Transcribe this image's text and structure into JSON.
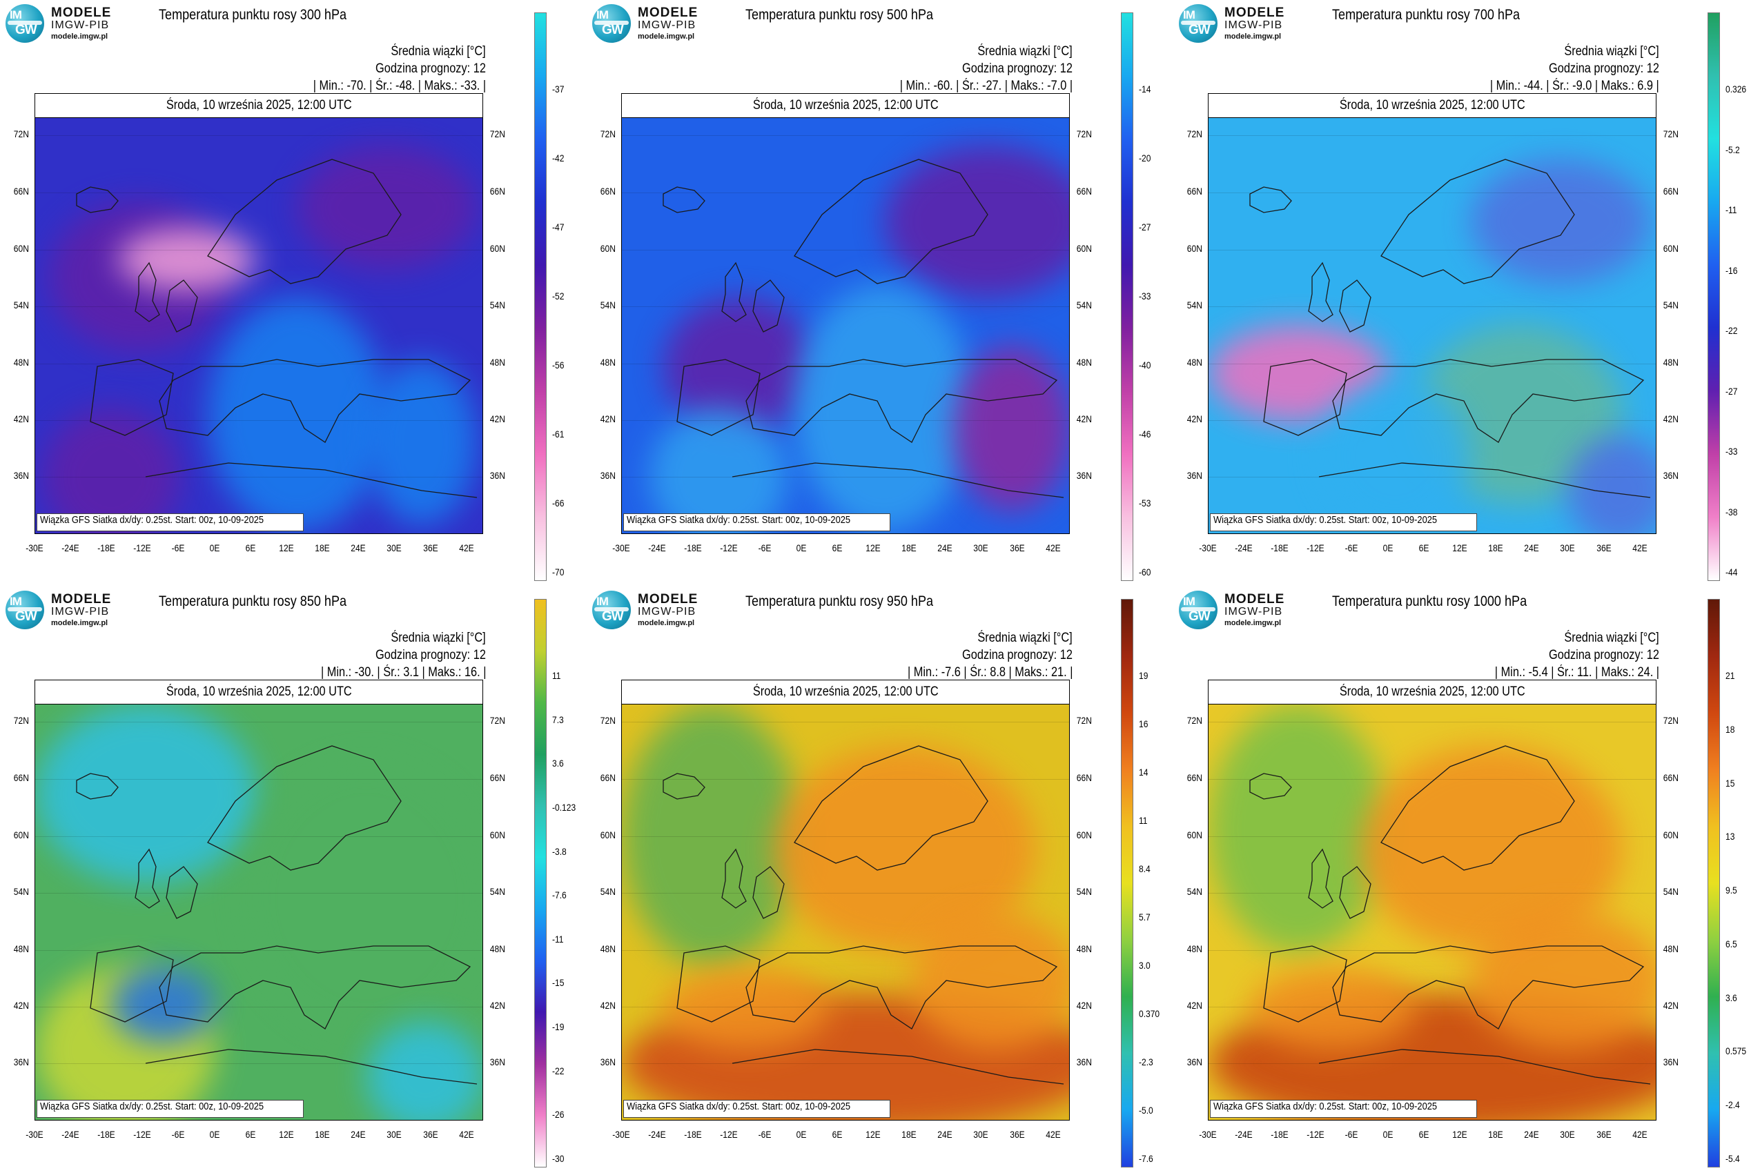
{
  "logo": {
    "line1": "MODELE",
    "line2": "IMGW-PIB",
    "line3": "modele.imgw.pl",
    "circle_top": "IM",
    "circle_bottom": "GW"
  },
  "common": {
    "date": "Środa, 10 września 2025, 12:00 UTC",
    "info_line1": "Średnia wiązki [°C]",
    "info_line2": "Godzina prognozy: 12",
    "footer": "Wiązka GFS Siatka dx/dy: 0.25st. Start: 00z, 10-09-2025",
    "lat_ticks": [
      "72N",
      "66N",
      "60N",
      "54N",
      "48N",
      "42N",
      "36N"
    ],
    "lon_ticks": [
      "-30E",
      "-24E",
      "-18E",
      "-12E",
      "-6E",
      "0E",
      "6E",
      "12E",
      "18E",
      "24E",
      "30E",
      "36E",
      "42E"
    ]
  },
  "panels": [
    {
      "title": "Temperatura punktu rosy 300 hPa",
      "stats": "| Min.:   -70. | Śr.:   -48. | Maks.:   -33. |",
      "colorbar_labels": [
        "-37",
        "-42",
        "-47",
        "-52",
        "-56",
        "-61",
        "-66",
        "-70"
      ],
      "colorbar_colors": [
        "#22e0e0",
        "#18a8f0",
        "#2060f0",
        "#2030d0",
        "#4018b0",
        "#8020a0",
        "#c040a8",
        "#f070c0",
        "#f8c0e0",
        "#ffffff"
      ],
      "map_colors": [
        "#3030c8",
        "#6020a8",
        "#1880f0",
        "#f0a0d8"
      ]
    },
    {
      "title": "Temperatura punktu rosy 500 hPa",
      "stats": "| Min.:   -60. | Śr.:   -27. | Maks.:   -7.0 |",
      "colorbar_labels": [
        "-14",
        "-20",
        "-27",
        "-33",
        "-40",
        "-46",
        "-53",
        "-60"
      ],
      "colorbar_colors": [
        "#22e0e0",
        "#18a8f0",
        "#2060f0",
        "#2030d0",
        "#4018b0",
        "#8020a0",
        "#c040a8",
        "#f070c0",
        "#f8c0e0",
        "#ffffff"
      ],
      "map_colors": [
        "#2060e8",
        "#6020a8",
        "#30a0f0",
        "#8a28a0"
      ]
    },
    {
      "title": "Temperatura punktu rosy 700 hPa",
      "stats": "| Min.:   -44. | Śr.:   -9.0 | Maks.:   6.9 |",
      "colorbar_labels": [
        "0.326",
        "-5.2",
        "-11",
        "-16",
        "-22",
        "-27",
        "-33",
        "-38",
        "-44"
      ],
      "colorbar_colors": [
        "#20a060",
        "#30c0b0",
        "#22e0e0",
        "#18a8f0",
        "#2060f0",
        "#2030d0",
        "#6020b0",
        "#c040a8",
        "#f080c8",
        "#ffffff"
      ],
      "map_colors": [
        "#30b0f0",
        "#5070e0",
        "#60b8a0",
        "#f070c0"
      ]
    },
    {
      "title": "Temperatura punktu rosy 850 hPa",
      "stats": "| Min.:   -30. | Śr.:   3.1 | Maks.:   16. |",
      "colorbar_labels": [
        "11",
        "7.3",
        "3.6",
        "-0.123",
        "-3.8",
        "-7.6",
        "-11",
        "-15",
        "-19",
        "-22",
        "-26",
        "-30"
      ],
      "colorbar_colors": [
        "#f0c020",
        "#c0d030",
        "#50b848",
        "#20a060",
        "#30c0b0",
        "#22e0e0",
        "#18a8f0",
        "#2060f0",
        "#4018b0",
        "#a030a0",
        "#f080c8",
        "#ffffff"
      ],
      "map_colors": [
        "#50b060",
        "#30c0e0",
        "#c8d838",
        "#2070e0"
      ]
    },
    {
      "title": "Temperatura punktu rosy 950 hPa",
      "stats": "| Min.:   -7.6 | Śr.:   8.8 | Maks.:   21. |",
      "colorbar_labels": [
        "19",
        "16",
        "14",
        "11",
        "8.4",
        "5.7",
        "3.0",
        "0.370",
        "-2.3",
        "-5.0",
        "-7.6"
      ],
      "colorbar_colors": [
        "#601808",
        "#a02810",
        "#d04810",
        "#f08020",
        "#f0c020",
        "#e8e020",
        "#90d040",
        "#30b050",
        "#30c0b0",
        "#18a8f0",
        "#2040e0"
      ],
      "map_colors": [
        "#e0c020",
        "#f09020",
        "#60b050",
        "#d04818"
      ]
    },
    {
      "title": "Temperatura punktu rosy 1000 hPa",
      "stats": "| Min.:   -5.4 | Śr.:   11. | Maks.:   24. |",
      "colorbar_labels": [
        "21",
        "18",
        "15",
        "13",
        "9.5",
        "6.5",
        "3.6",
        "0.575",
        "-2.4",
        "-5.4"
      ],
      "colorbar_colors": [
        "#601808",
        "#a02810",
        "#d04810",
        "#f08020",
        "#f0c020",
        "#e8e020",
        "#90d040",
        "#30b050",
        "#30c0b0",
        "#18a8f0",
        "#2040e0"
      ],
      "map_colors": [
        "#e8c828",
        "#f09020",
        "#78c048",
        "#c84010"
      ]
    }
  ]
}
